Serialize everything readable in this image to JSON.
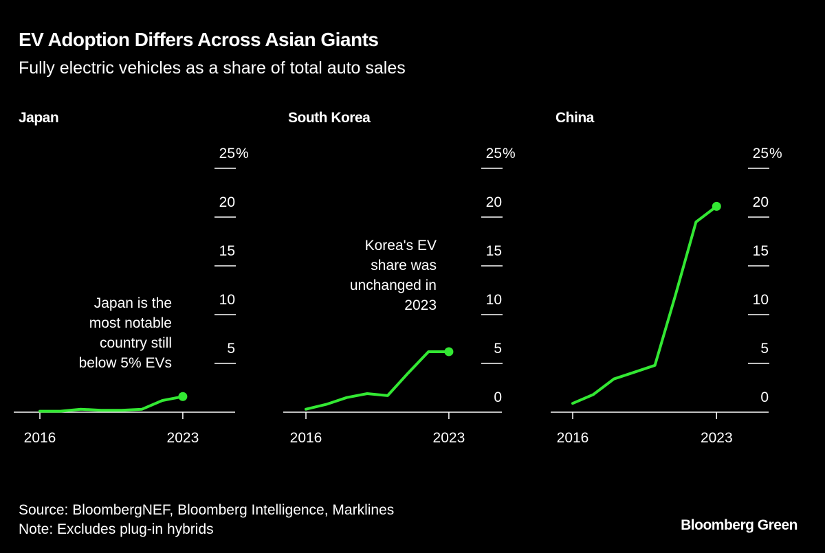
{
  "title": "EV Adoption Differs Across Asian Giants",
  "subtitle": "Fully electric vehicles as a share of total auto sales",
  "source": "Source: BloombergNEF, Bloomberg Intelligence, Marklines",
  "note": "Note: Excludes plug-in hybrids",
  "brand": "Bloomberg Green",
  "colors": {
    "background": "#000000",
    "line": "#33e833",
    "text": "#ffffff"
  },
  "chart_data": [
    {
      "type": "line",
      "title": "Japan",
      "x": [
        2016,
        2017,
        2018,
        2019,
        2020,
        2021,
        2022,
        2023
      ],
      "values": [
        0.1,
        0.1,
        0.3,
        0.2,
        0.2,
        0.3,
        1.2,
        1.6
      ],
      "xticks": [
        "2016",
        "2023"
      ],
      "yticks": [
        "25%",
        "20",
        "15",
        "10",
        "5"
      ],
      "ylim": [
        0,
        25
      ],
      "annotation": [
        "Japan is the",
        "most notable",
        "country still",
        "below 5% EVs"
      ],
      "grid": true
    },
    {
      "type": "line",
      "title": "South Korea",
      "x": [
        2016,
        2017,
        2018,
        2019,
        2020,
        2021,
        2022,
        2023
      ],
      "values": [
        0.3,
        0.8,
        1.5,
        1.9,
        1.7,
        4.0,
        6.2,
        6.2
      ],
      "xticks": [
        "2016",
        "2023"
      ],
      "yticks": [
        "25%",
        "20",
        "15",
        "10",
        "5",
        "0"
      ],
      "ylim": [
        0,
        25
      ],
      "annotation": [
        "Korea's EV",
        "share was",
        "unchanged in",
        "2023"
      ],
      "grid": true
    },
    {
      "type": "line",
      "title": "China",
      "x": [
        2016,
        2017,
        2018,
        2019,
        2020,
        2021,
        2022,
        2023
      ],
      "values": [
        0.9,
        1.8,
        3.4,
        4.1,
        4.8,
        12.0,
        19.5,
        21.1
      ],
      "xticks": [
        "2016",
        "2023"
      ],
      "yticks": [
        "25%",
        "20",
        "15",
        "10",
        "5",
        "0"
      ],
      "ylim": [
        0,
        25
      ],
      "annotation": [],
      "grid": true
    }
  ]
}
